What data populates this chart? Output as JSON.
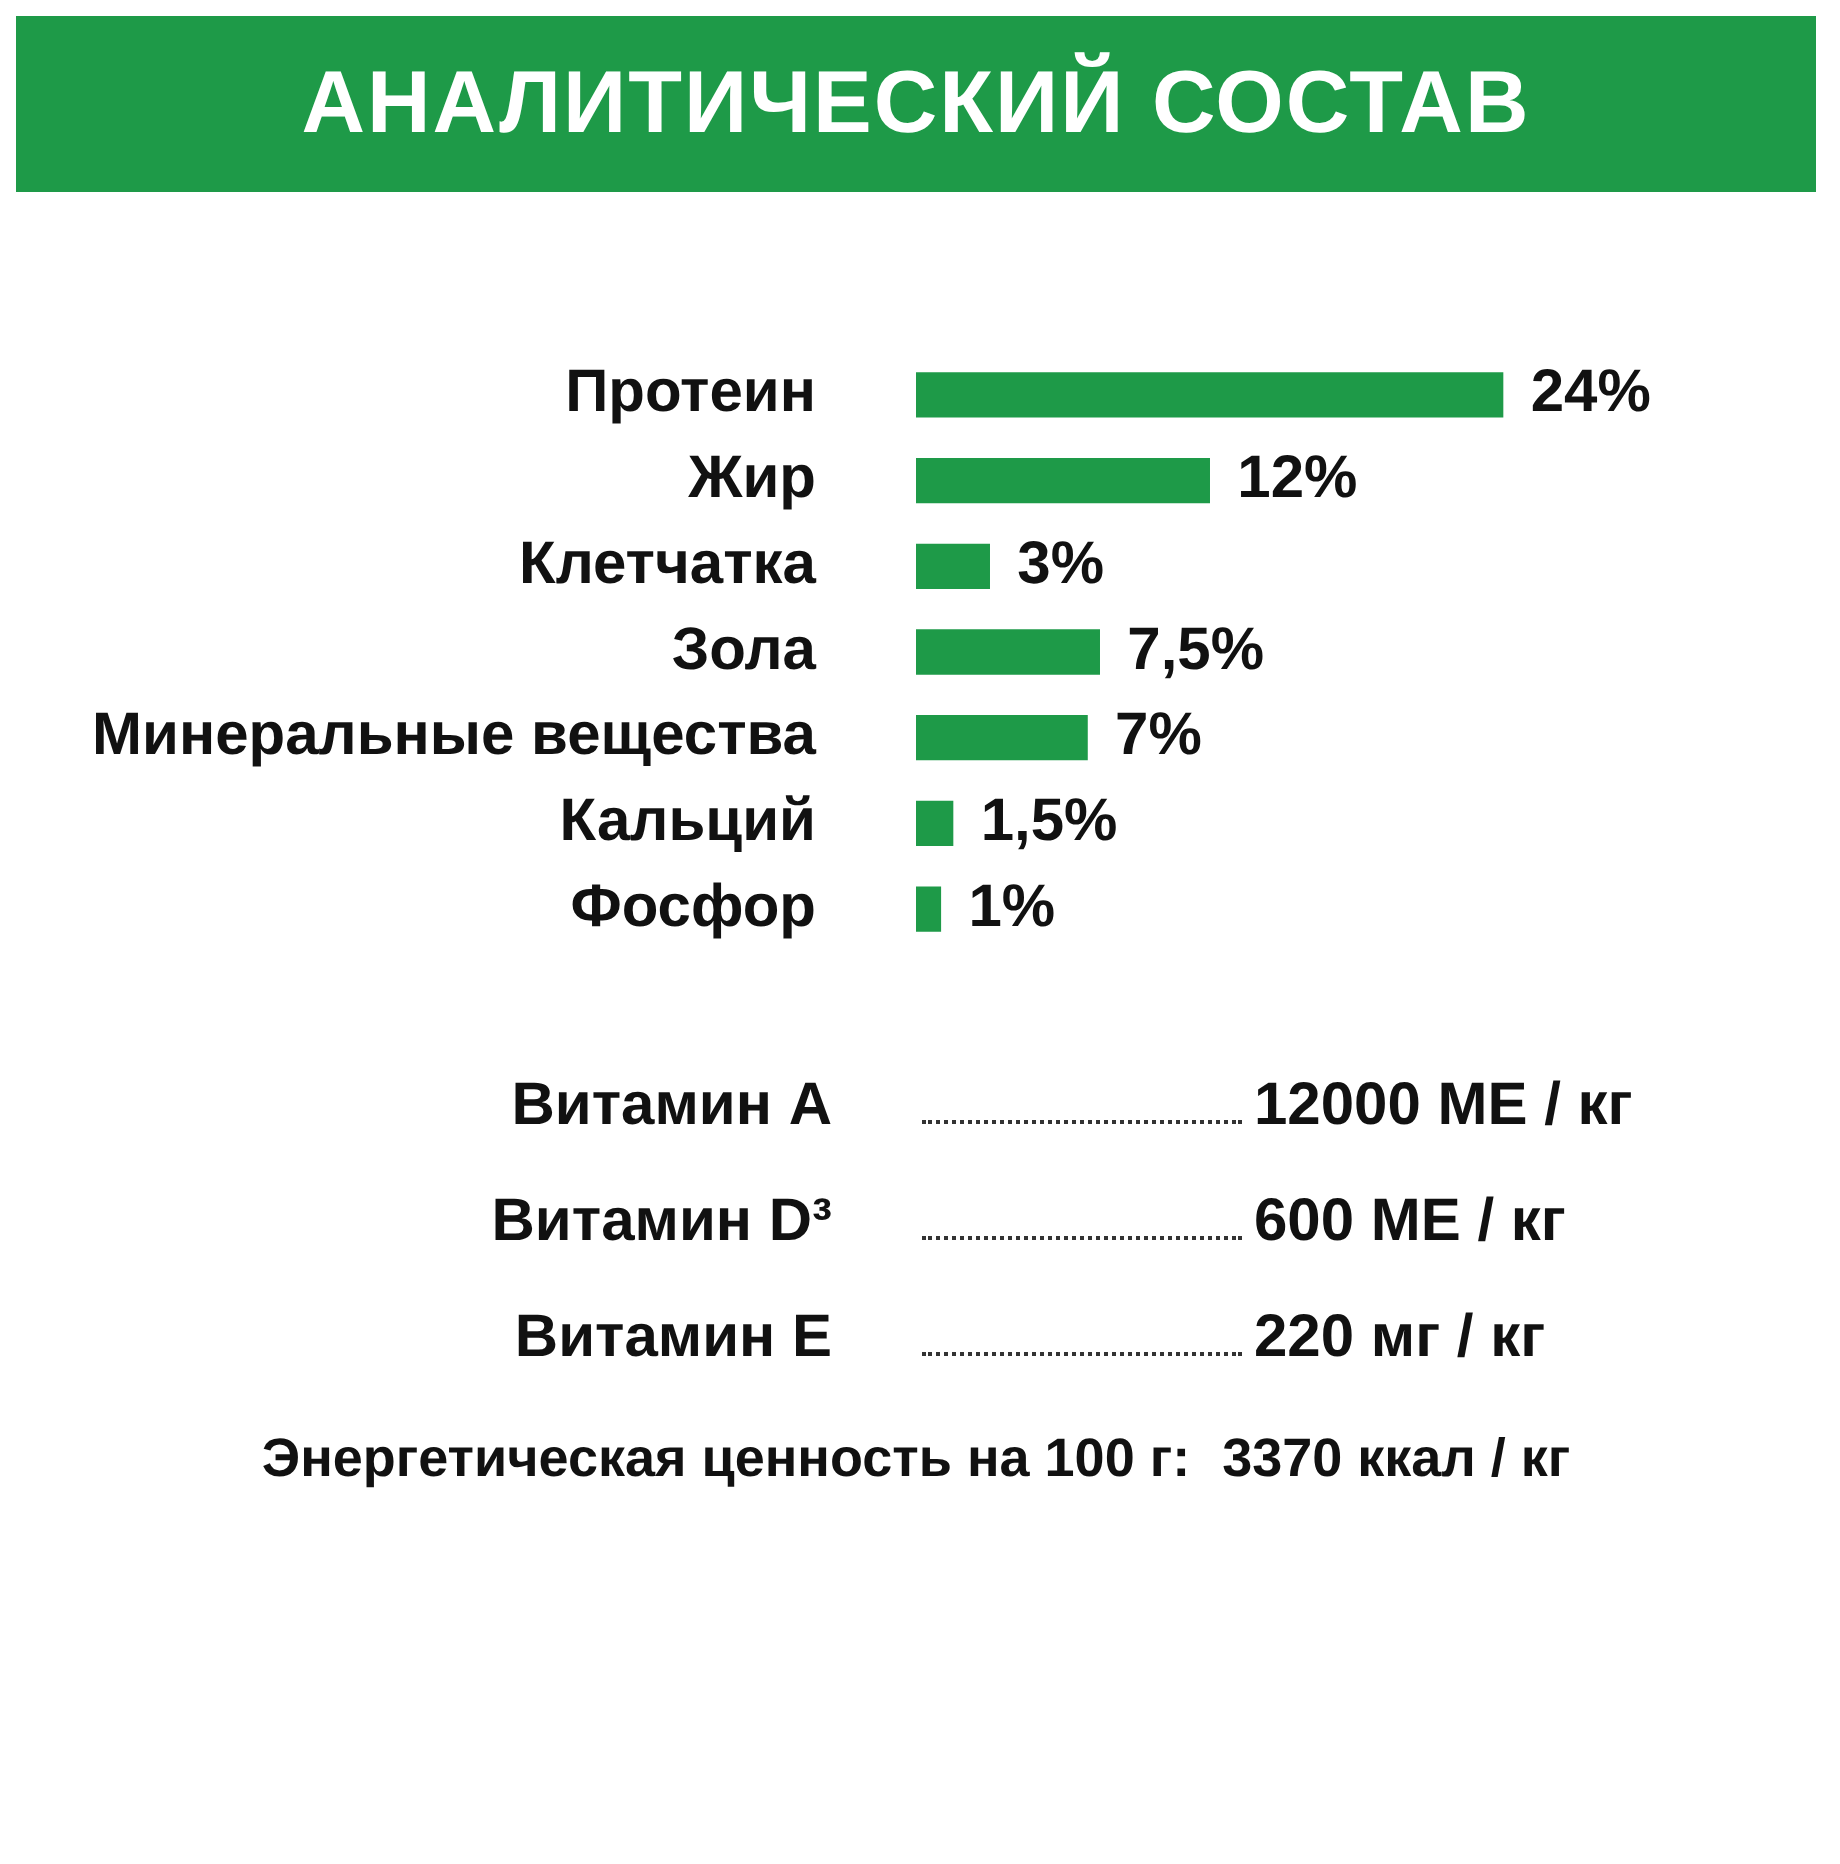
{
  "chart_data": {
    "type": "bar",
    "orientation": "horizontal",
    "title": "АНАЛИТИЧЕСКИЙ СОСТАВ",
    "categories": [
      "Протеин",
      "Жир",
      "Клетчатка",
      "Зола",
      "Минеральные вещества",
      "Кальций",
      "Фосфор"
    ],
    "values": [
      24,
      12,
      3,
      7.5,
      7,
      1.5,
      1
    ],
    "value_labels": [
      "24%",
      "12%",
      "3%",
      "7,5%",
      "7%",
      "1,5%",
      "1%"
    ],
    "color": "#1e9a48",
    "annotations": [
      "Витамин A",
      "12000 МЕ / кг",
      "Витамин D³",
      "600 МЕ / кг",
      "Витамин E",
      "220 мг / кг",
      "Энергетическая ценность на 100 г:",
      "3370 ккал / кг"
    ]
  }
}
